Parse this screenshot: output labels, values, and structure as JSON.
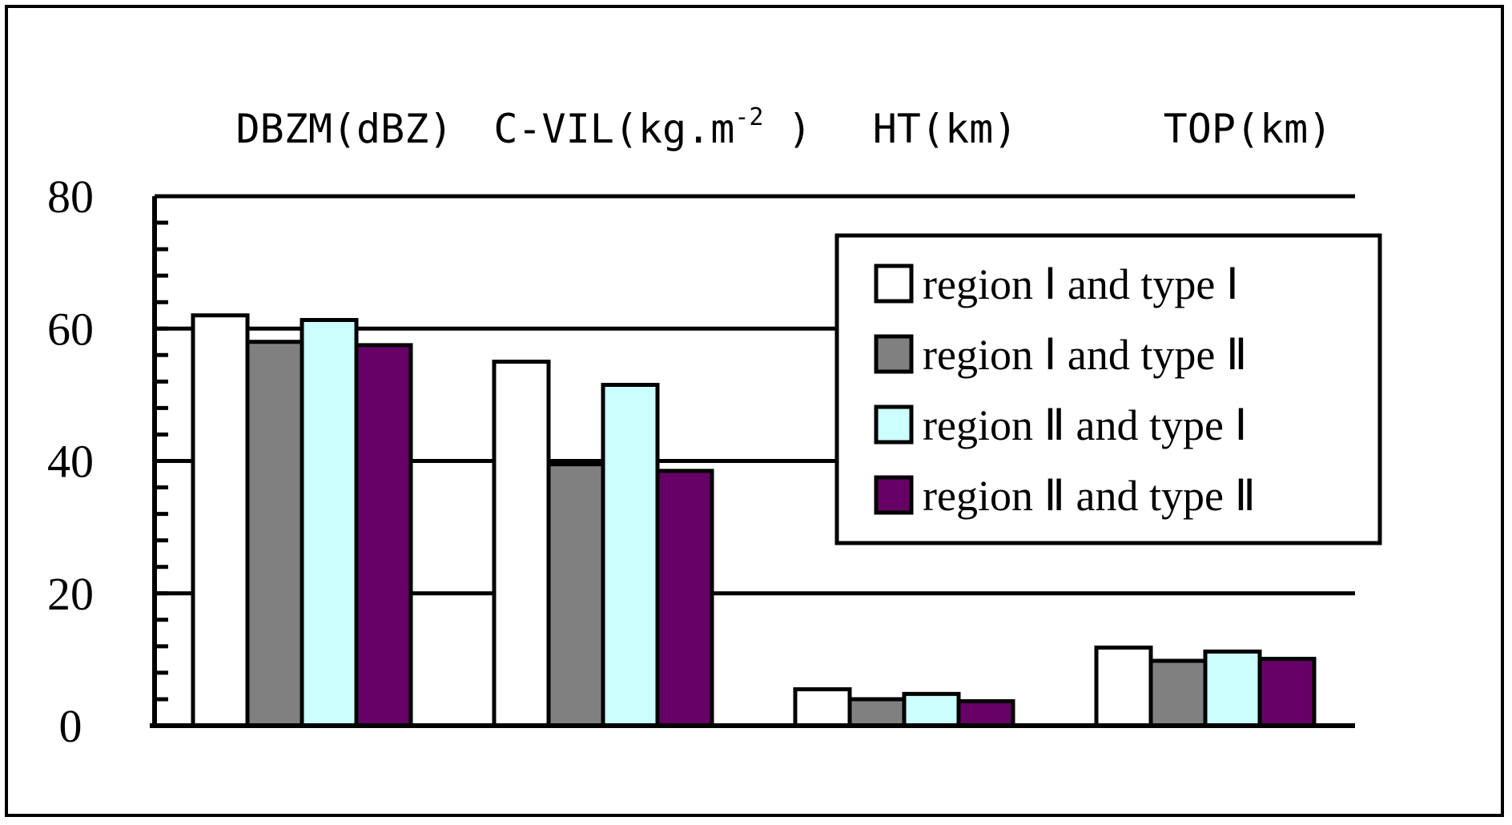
{
  "chart_data": {
    "type": "bar",
    "title": "",
    "xlabel": "",
    "ylabel": "",
    "categories": [
      "DBZM(dBZ)",
      "C-VIL(kg.m",
      "HT(km)",
      "TOP(km)"
    ],
    "category_superscript": {
      "index": 1,
      "text": "-2",
      "suffix": " )"
    },
    "ylim": [
      0,
      80
    ],
    "yticks": [
      0,
      20,
      40,
      60,
      80
    ],
    "grid": true,
    "legend_position": "right",
    "series": [
      {
        "name": "region Ⅰ and type Ⅰ",
        "color": "#ffffff",
        "values": [
          62,
          55,
          5.5,
          11.8
        ]
      },
      {
        "name": "region Ⅰ and type Ⅱ",
        "color": "#808080",
        "values": [
          58,
          39.5,
          4.0,
          9.8
        ]
      },
      {
        "name": "region Ⅱ and type Ⅰ",
        "color": "#ccffff",
        "values": [
          61.3,
          51.5,
          4.8,
          11.2
        ]
      },
      {
        "name": "region Ⅱ and type Ⅱ",
        "color": "#660066",
        "values": [
          57.5,
          38.5,
          3.7,
          10.1
        ]
      }
    ]
  }
}
